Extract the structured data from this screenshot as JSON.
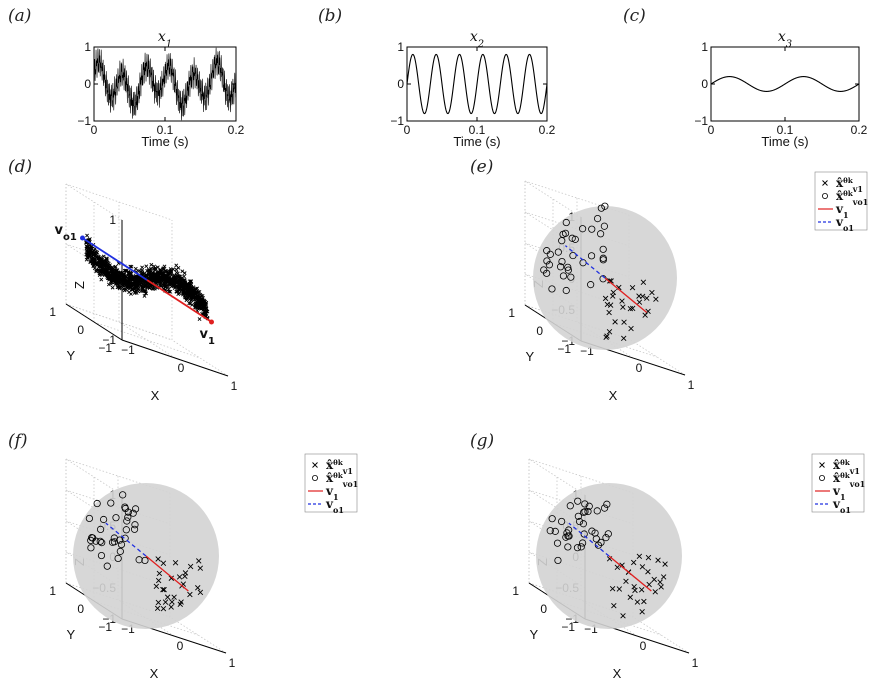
{
  "chart_data": [
    {
      "id": "a",
      "panel_label": "(a)",
      "type": "line",
      "title": "x",
      "title_sub": "1",
      "xlabel": "Time (s)",
      "xlim": [
        0,
        0.2
      ],
      "ylim": [
        -1,
        1
      ],
      "xticks": [
        "0",
        "0.1",
        "0.2"
      ],
      "yticks": [
        "1",
        "0",
        "−1"
      ],
      "signal": "noisy multi-frequency waveform"
    },
    {
      "id": "b",
      "panel_label": "(b)",
      "type": "line",
      "title": "x",
      "title_sub": "2",
      "xlabel": "Time (s)",
      "xlim": [
        0,
        0.2
      ],
      "ylim": [
        -1,
        1
      ],
      "xticks": [
        "0",
        "0.1",
        "0.2"
      ],
      "yticks": [
        "1",
        "0",
        "−1"
      ],
      "signal": "sinusoid",
      "amplitude": 0.8,
      "cycles": 6
    },
    {
      "id": "c",
      "panel_label": "(c)",
      "type": "line",
      "title": "x",
      "title_sub": "3",
      "xlabel": "Time (s)",
      "xlim": [
        0,
        0.2
      ],
      "ylim": [
        -1,
        1
      ],
      "xticks": [
        "0",
        "0.1",
        "0.2"
      ],
      "yticks": [
        "1",
        "0",
        "−1"
      ],
      "signal": "sinusoid",
      "amplitude": 0.2,
      "cycles": 2
    },
    {
      "id": "d",
      "panel_label": "(d)",
      "type": "scatter",
      "xlabel": "X",
      "ylabel": "Y",
      "zlabel": "Z",
      "xticks": [
        "−1",
        "0",
        "1"
      ],
      "yticks": [
        "−1",
        "0",
        "1"
      ],
      "zticks": [
        "1",
        "0",
        "−1"
      ],
      "annotations": {
        "vo1": "v",
        "vo1_sub": "o1",
        "v1": "v",
        "v1_sub": "1"
      },
      "series": [
        {
          "marker": "x"
        },
        {
          "name": "v1",
          "color": "#e02020"
        },
        {
          "name": "vo1",
          "color": "#2030e0"
        }
      ]
    },
    {
      "id": "e",
      "panel_label": "(e)",
      "type": "scatter",
      "xlabel": "X",
      "ylabel": "Y",
      "zlabel": "Z",
      "xticks": [
        "−1",
        "0",
        "1"
      ],
      "yticks": [
        "−1",
        "0",
        "1"
      ],
      "zticks": [
        "1",
        "0.5",
        "0",
        "−0.5",
        "−1"
      ],
      "legend": [
        {
          "symbol": "x",
          "label": "x̂",
          "label_sup": "θk",
          "label_sub": "v1"
        },
        {
          "symbol": "o",
          "label": "x̂",
          "label_sup": "θk",
          "label_sub": "vo1"
        },
        {
          "symbol": "line",
          "color": "#e02020",
          "label": "v",
          "label_sub": "1"
        },
        {
          "symbol": "dash",
          "color": "#2030e0",
          "label": "v",
          "label_sub": "o1"
        }
      ]
    },
    {
      "id": "f",
      "panel_label": "(f)",
      "type": "scatter",
      "xlabel": "X",
      "ylabel": "Y",
      "zlabel": "Z",
      "xticks": [
        "−1",
        "0",
        "1"
      ],
      "yticks": [
        "−1",
        "0",
        "1"
      ],
      "zticks": [
        "1",
        "0.5",
        "0",
        "−0.5",
        "−1"
      ],
      "legend": [
        {
          "symbol": "x",
          "label": "x̂",
          "label_sup": "θk",
          "label_sub": "v1"
        },
        {
          "symbol": "o",
          "label": "x̂",
          "label_sup": "θk",
          "label_sub": "vo1"
        },
        {
          "symbol": "line",
          "color": "#e02020",
          "label": "v",
          "label_sub": "1"
        },
        {
          "symbol": "dash",
          "color": "#2030e0",
          "label": "v",
          "label_sub": "o1"
        }
      ]
    },
    {
      "id": "g",
      "panel_label": "(g)",
      "type": "scatter",
      "xlabel": "X",
      "ylabel": "Y",
      "zlabel": "Z",
      "xticks": [
        "−1",
        "0",
        "1"
      ],
      "yticks": [
        "−1",
        "0",
        "1"
      ],
      "zticks": [
        "1",
        "0.5",
        "0",
        "−0.5",
        "−1"
      ],
      "legend": [
        {
          "symbol": "x",
          "label": "x̂",
          "label_sup": "θk",
          "label_sub": "v1"
        },
        {
          "symbol": "o",
          "label": "x̂",
          "label_sup": "θk",
          "label_sub": "vo1"
        },
        {
          "symbol": "line",
          "color": "#e02020",
          "label": "v",
          "label_sub": "1"
        },
        {
          "symbol": "dash",
          "color": "#2030e0",
          "label": "v",
          "label_sub": "o1"
        }
      ]
    }
  ],
  "colors": {
    "v1": "#e02020",
    "vo1": "#2030e0",
    "sphere": "#d3d3d3"
  }
}
